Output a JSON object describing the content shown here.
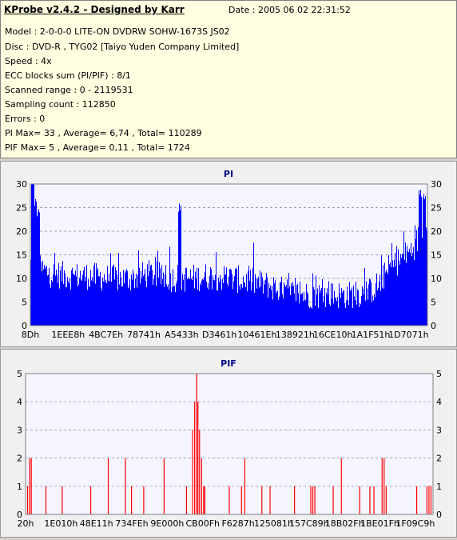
{
  "header": {
    "title": "KProbe v2.4.2 - Designed by Karr",
    "date": "Date : 2005 06 02 22:31:52",
    "lines": [
      "Model : 2-0-0-0 LITE-ON DVDRW SOHW-1673S JS02",
      "Disc : DVD-R , TYG02 [Taiyo Yuden Company Limited]",
      "Speed : 4x",
      "ECC blocks sum (PI/PIF) : 8/1",
      "Scanned range : 0 - 2119531",
      "Sampling count : 112850",
      "Errors : 0",
      "PI Max= 33 , Average= 6,74 , Total= 110289",
      "PIF Max= 5 , Average= 0,11 , Total= 1724"
    ]
  },
  "colors": {
    "pi": "#0000ff",
    "pif": "#ff0000",
    "plot_bg": "#f5f5ff",
    "title": "#000080"
  },
  "chart_data": [
    {
      "type": "bar",
      "title": "PI",
      "xlabel": "",
      "ylabel": "",
      "ylim": [
        0,
        30
      ],
      "yticks": [
        0,
        5,
        10,
        15,
        20,
        25,
        30
      ],
      "xtick_labels": [
        "8Dh",
        "1EEE8h",
        "4BC7Eh",
        "78741h",
        "A5433h",
        "D3461h",
        "10461Eh",
        "138921h",
        "16CE10h",
        "1A1F51h",
        "1D7071h"
      ],
      "grid": true,
      "profile_fraction": [
        0,
        0.05,
        0.1,
        0.15,
        0.2,
        0.25,
        0.3,
        0.35,
        0.4,
        0.45,
        0.5,
        0.55,
        0.6,
        0.65,
        0.7,
        0.75,
        0.8,
        0.85,
        0.88,
        0.9,
        0.93,
        0.96,
        0.98,
        1.0
      ],
      "profile_avg": [
        13,
        11,
        10.5,
        10.5,
        10,
        10,
        11,
        10,
        10,
        10.5,
        10,
        9.5,
        8.5,
        7,
        6.5,
        6.5,
        6.5,
        7,
        9,
        12,
        14,
        16,
        19,
        20
      ],
      "peaks": [
        {
          "fraction": 0.005,
          "value": 33
        },
        {
          "fraction": 0.012,
          "value": 27
        },
        {
          "fraction": 0.02,
          "value": 25
        },
        {
          "fraction": 0.375,
          "value": 26
        },
        {
          "fraction": 0.98,
          "value": 29
        },
        {
          "fraction": 0.99,
          "value": 28
        }
      ]
    },
    {
      "type": "bar",
      "title": "PIF",
      "xlabel": "",
      "ylabel": "",
      "ylim": [
        0,
        5
      ],
      "yticks": [
        0,
        1,
        2,
        3,
        4,
        5
      ],
      "xtick_labels": [
        "20h",
        "1E010h",
        "48E11h",
        "734FEh",
        "9E000h",
        "CB00Fh",
        "F6287h",
        "125081h",
        "157C89h",
        "18B02Fh",
        "1BE01Fh",
        "1F09C9h"
      ],
      "grid": true,
      "events": [
        {
          "fraction": 0.005,
          "value": 1
        },
        {
          "fraction": 0.01,
          "value": 2
        },
        {
          "fraction": 0.014,
          "value": 2
        },
        {
          "fraction": 0.05,
          "value": 1
        },
        {
          "fraction": 0.09,
          "value": 1
        },
        {
          "fraction": 0.16,
          "value": 1
        },
        {
          "fraction": 0.203,
          "value": 2
        },
        {
          "fraction": 0.245,
          "value": 2
        },
        {
          "fraction": 0.26,
          "value": 1
        },
        {
          "fraction": 0.29,
          "value": 1
        },
        {
          "fraction": 0.34,
          "value": 2
        },
        {
          "fraction": 0.395,
          "value": 1
        },
        {
          "fraction": 0.41,
          "value": 3
        },
        {
          "fraction": 0.415,
          "value": 4
        },
        {
          "fraction": 0.42,
          "value": 5
        },
        {
          "fraction": 0.423,
          "value": 4
        },
        {
          "fraction": 0.427,
          "value": 3
        },
        {
          "fraction": 0.432,
          "value": 2
        },
        {
          "fraction": 0.437,
          "value": 1
        },
        {
          "fraction": 0.44,
          "value": 1
        },
        {
          "fraction": 0.5,
          "value": 1
        },
        {
          "fraction": 0.53,
          "value": 1
        },
        {
          "fraction": 0.538,
          "value": 2
        },
        {
          "fraction": 0.58,
          "value": 1
        },
        {
          "fraction": 0.6,
          "value": 1
        },
        {
          "fraction": 0.66,
          "value": 1
        },
        {
          "fraction": 0.7,
          "value": 1
        },
        {
          "fraction": 0.705,
          "value": 1
        },
        {
          "fraction": 0.71,
          "value": 1
        },
        {
          "fraction": 0.755,
          "value": 1
        },
        {
          "fraction": 0.775,
          "value": 2
        },
        {
          "fraction": 0.82,
          "value": 1
        },
        {
          "fraction": 0.845,
          "value": 1
        },
        {
          "fraction": 0.855,
          "value": 1
        },
        {
          "fraction": 0.875,
          "value": 2
        },
        {
          "fraction": 0.88,
          "value": 2
        },
        {
          "fraction": 0.885,
          "value": 1
        },
        {
          "fraction": 0.96,
          "value": 1
        },
        {
          "fraction": 0.985,
          "value": 1
        },
        {
          "fraction": 0.99,
          "value": 1
        },
        {
          "fraction": 0.995,
          "value": 1
        }
      ]
    }
  ]
}
